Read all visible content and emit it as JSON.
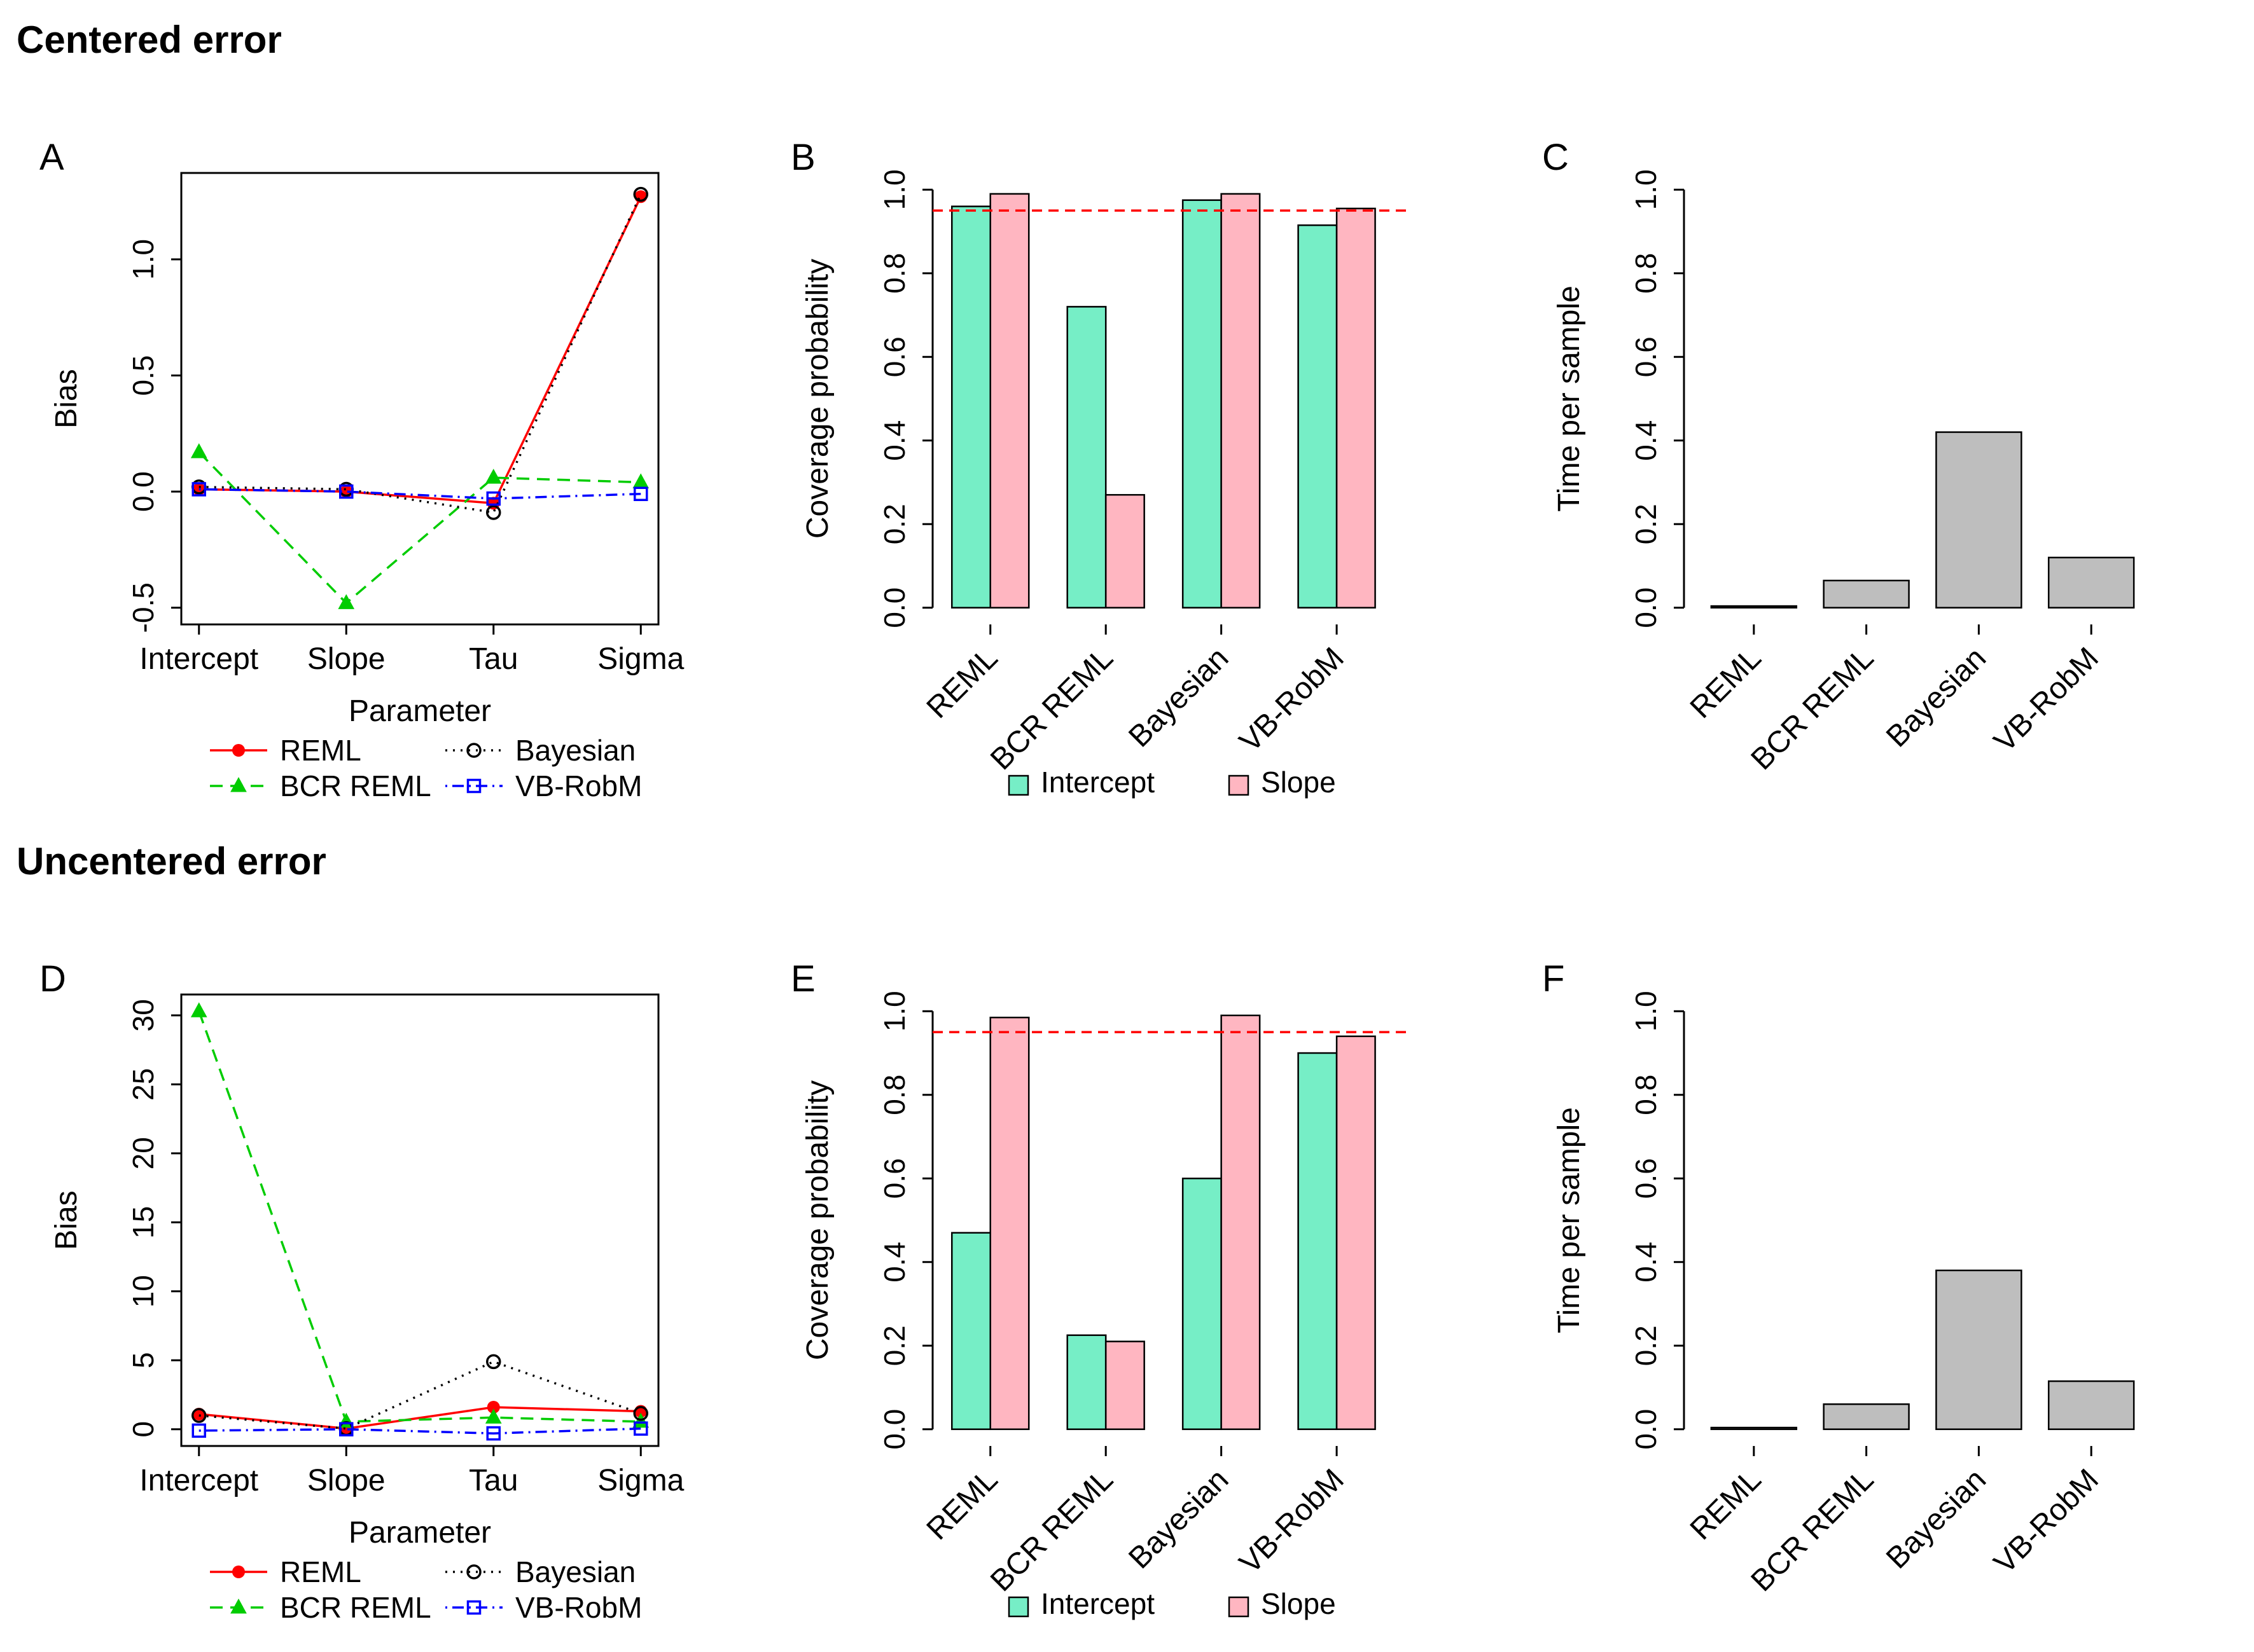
{
  "page": {
    "background": "#ffffff"
  },
  "sections": [
    {
      "title": "Centered error",
      "panel_indexes": [
        0,
        1,
        2
      ]
    },
    {
      "title": "Uncentered error",
      "panel_indexes": [
        3,
        4,
        5
      ]
    }
  ],
  "colors": {
    "reml": "#FF0000",
    "bcr_reml": "#00CC00",
    "bayesian": "#000000",
    "vb_robm": "#0000FF",
    "intercept_bar": "#76EEC6",
    "slope_bar": "#FFB6C1",
    "time_bar": "#BEBEBE",
    "reference_line": "#FF0000"
  },
  "chart_data": [
    {
      "panel": "A",
      "section": "Centered error",
      "type": "line",
      "x_categories": [
        "Intercept",
        "Slope",
        "Tau",
        "Sigma"
      ],
      "xlabel": "Parameter",
      "ylabel": "Bias",
      "ylim": [
        -0.5,
        1.3
      ],
      "yticks": [
        -0.5,
        0.0,
        0.5,
        1.0
      ],
      "ytick_labels": [
        "-0.5",
        "0.0",
        "0.5",
        "1.0"
      ],
      "grid": false,
      "legend_position": "below",
      "series": [
        {
          "name": "REML",
          "color": "#FF0000",
          "dash": "solid",
          "marker": "circle_filled",
          "values": [
            0.01,
            0.0,
            -0.05,
            1.27
          ]
        },
        {
          "name": "BCR REML",
          "color": "#00CC00",
          "dash": "dashed",
          "marker": "triangle_filled",
          "values": [
            0.17,
            -0.48,
            0.06,
            0.04
          ]
        },
        {
          "name": "Bayesian",
          "color": "#000000",
          "dash": "dotted",
          "marker": "circle_open",
          "values": [
            0.02,
            0.01,
            -0.09,
            1.28
          ]
        },
        {
          "name": "VB-RobM",
          "color": "#0000FF",
          "dash": "dashdot",
          "marker": "square_open",
          "values": [
            0.01,
            0.0,
            -0.03,
            -0.01
          ]
        }
      ]
    },
    {
      "panel": "B",
      "section": "Centered error",
      "type": "grouped_bar",
      "categories": [
        "REML",
        "BCR REML",
        "Bayesian",
        "VB-RobM"
      ],
      "ylabel": "Coverage probability",
      "ylim": [
        0,
        1.0
      ],
      "yticks": [
        0.0,
        0.2,
        0.4,
        0.6,
        0.8,
        1.0
      ],
      "ytick_labels": [
        "0.0",
        "0.2",
        "0.4",
        "0.6",
        "0.8",
        "1.0"
      ],
      "reference_line": 0.95,
      "legend_position": "below",
      "series": [
        {
          "name": "Intercept",
          "color": "#76EEC6",
          "values": [
            0.96,
            0.72,
            0.975,
            0.915
          ]
        },
        {
          "name": "Slope",
          "color": "#FFB6C1",
          "values": [
            0.99,
            0.27,
            0.99,
            0.955
          ]
        }
      ]
    },
    {
      "panel": "C",
      "section": "Centered error",
      "type": "bar",
      "categories": [
        "REML",
        "BCR REML",
        "Bayesian",
        "VB-RobM"
      ],
      "ylabel": "Time per sample",
      "ylim": [
        0,
        1.0
      ],
      "yticks": [
        0.0,
        0.2,
        0.4,
        0.6,
        0.8,
        1.0
      ],
      "ytick_labels": [
        "0.0",
        "0.2",
        "0.4",
        "0.6",
        "0.8",
        "1.0"
      ],
      "bar_color": "#BEBEBE",
      "values": [
        0.004,
        0.065,
        0.42,
        0.12
      ]
    },
    {
      "panel": "D",
      "section": "Uncentered error",
      "type": "line",
      "x_categories": [
        "Intercept",
        "Slope",
        "Tau",
        "Sigma"
      ],
      "xlabel": "Parameter",
      "ylabel": "Bias",
      "ylim": [
        0,
        30.3
      ],
      "yticks": [
        0,
        5,
        10,
        15,
        20,
        25,
        30
      ],
      "ytick_labels": [
        "0",
        "5",
        "10",
        "15",
        "20",
        "25",
        "30"
      ],
      "grid": false,
      "legend_position": "below",
      "series": [
        {
          "name": "REML",
          "color": "#FF0000",
          "dash": "solid",
          "marker": "circle_filled",
          "values": [
            1.1,
            0.05,
            1.6,
            1.3
          ]
        },
        {
          "name": "BCR REML",
          "color": "#00CC00",
          "dash": "dashed",
          "marker": "triangle_filled",
          "values": [
            30.3,
            0.55,
            0.85,
            0.55
          ]
        },
        {
          "name": "Bayesian",
          "color": "#000000",
          "dash": "dotted",
          "marker": "circle_open",
          "values": [
            1.0,
            0.05,
            4.9,
            1.15
          ]
        },
        {
          "name": "VB-RobM",
          "color": "#0000FF",
          "dash": "dashdot",
          "marker": "square_open",
          "values": [
            -0.1,
            0.0,
            -0.3,
            0.05
          ]
        }
      ]
    },
    {
      "panel": "E",
      "section": "Uncentered error",
      "type": "grouped_bar",
      "categories": [
        "REML",
        "BCR REML",
        "Bayesian",
        "VB-RobM"
      ],
      "ylabel": "Coverage probability",
      "ylim": [
        0,
        1.0
      ],
      "yticks": [
        0.0,
        0.2,
        0.4,
        0.6,
        0.8,
        1.0
      ],
      "ytick_labels": [
        "0.0",
        "0.2",
        "0.4",
        "0.6",
        "0.8",
        "1.0"
      ],
      "reference_line": 0.95,
      "legend_position": "below",
      "series": [
        {
          "name": "Intercept",
          "color": "#76EEC6",
          "values": [
            0.47,
            0.225,
            0.6,
            0.9
          ]
        },
        {
          "name": "Slope",
          "color": "#FFB6C1",
          "values": [
            0.985,
            0.21,
            0.99,
            0.94
          ]
        }
      ]
    },
    {
      "panel": "F",
      "section": "Uncentered error",
      "type": "bar",
      "categories": [
        "REML",
        "BCR REML",
        "Bayesian",
        "VB-RobM"
      ],
      "ylabel": "Time per sample",
      "ylim": [
        0,
        1.0
      ],
      "yticks": [
        0.0,
        0.2,
        0.4,
        0.6,
        0.8,
        1.0
      ],
      "ytick_labels": [
        "0.0",
        "0.2",
        "0.4",
        "0.6",
        "0.8",
        "1.0"
      ],
      "bar_color": "#BEBEBE",
      "values": [
        0.004,
        0.06,
        0.38,
        0.115
      ]
    }
  ]
}
